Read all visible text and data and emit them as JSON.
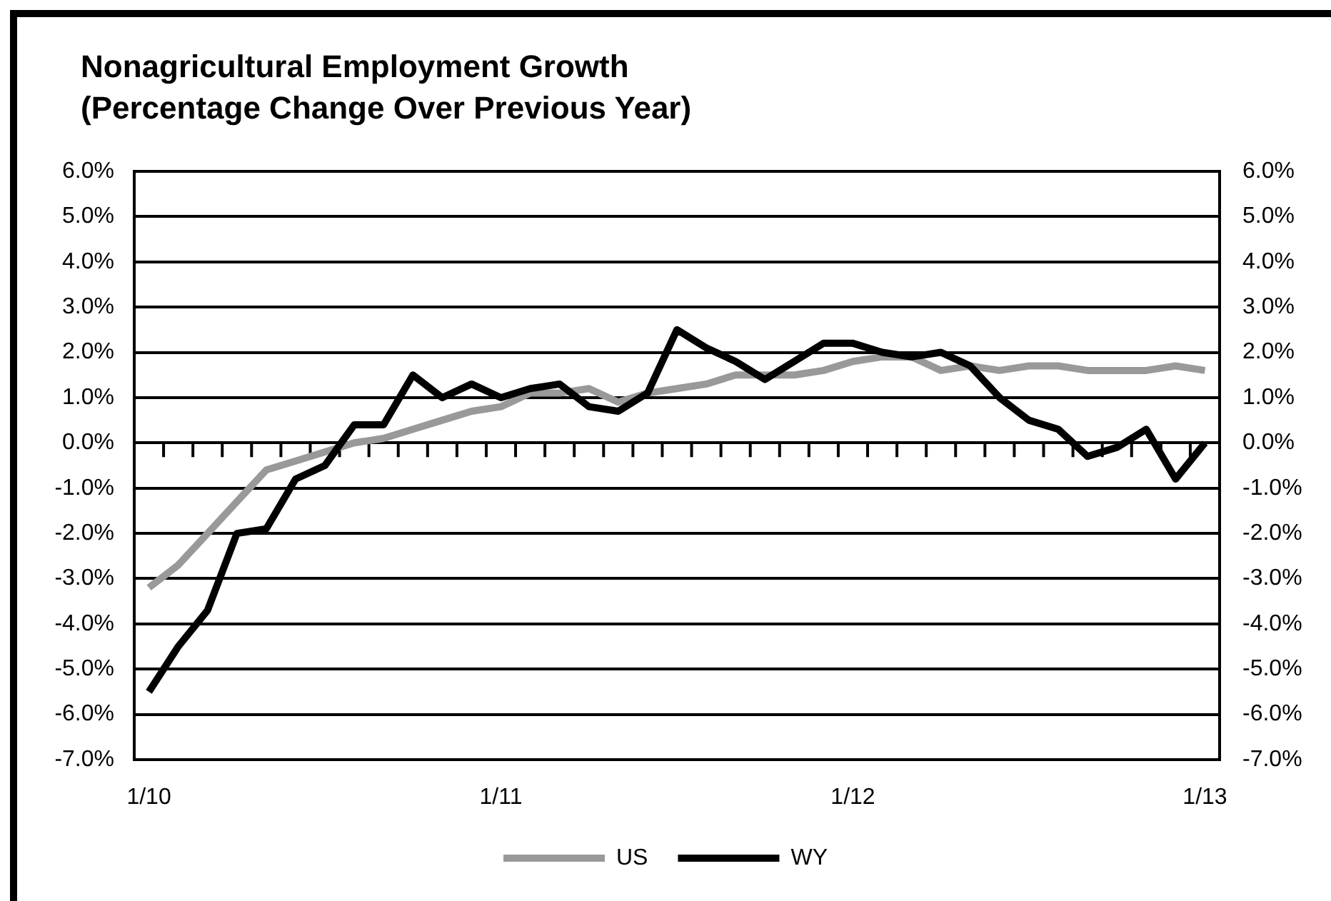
{
  "chart_data": {
    "type": "line",
    "title": "Nonagricultural Employment Growth",
    "subtitle": "(Percentage Change Over Previous Year)",
    "categories": [
      "1/10",
      null,
      null,
      null,
      null,
      null,
      null,
      null,
      null,
      null,
      null,
      null,
      "1/11",
      null,
      null,
      null,
      null,
      null,
      null,
      null,
      null,
      null,
      null,
      null,
      "1/12",
      null,
      null,
      null,
      null,
      null,
      null,
      null,
      null,
      null,
      null,
      null,
      "1/13"
    ],
    "series": [
      {
        "name": "US",
        "color": "#999999",
        "values": [
          -3.2,
          -2.7,
          -2.0,
          -1.3,
          -0.6,
          -0.4,
          -0.2,
          0.0,
          0.1,
          0.3,
          0.5,
          0.7,
          0.8,
          1.1,
          1.1,
          1.2,
          0.9,
          1.1,
          1.2,
          1.3,
          1.5,
          1.5,
          1.5,
          1.6,
          1.8,
          1.9,
          1.9,
          1.6,
          1.7,
          1.6,
          1.7,
          1.7,
          1.6,
          1.6,
          1.6,
          1.7,
          1.6
        ]
      },
      {
        "name": "WY",
        "color": "#000000",
        "values": [
          -5.5,
          -4.5,
          -3.7,
          -2.0,
          -1.9,
          -0.8,
          -0.5,
          0.4,
          0.4,
          1.5,
          1.0,
          1.3,
          1.0,
          1.2,
          1.3,
          0.8,
          0.7,
          1.1,
          2.5,
          2.1,
          1.8,
          1.4,
          1.8,
          2.2,
          2.2,
          2.0,
          1.9,
          2.0,
          1.7,
          1.0,
          0.5,
          0.3,
          -0.3,
          -0.1,
          0.3,
          -0.8,
          0.0
        ]
      }
    ],
    "ylim": [
      -7,
      6
    ],
    "yticks": [
      {
        "value": -7,
        "label": "-7.0%"
      },
      {
        "value": -6,
        "label": "-6.0%"
      },
      {
        "value": -5,
        "label": "-5.0%"
      },
      {
        "value": -4,
        "label": "-4.0%"
      },
      {
        "value": -3,
        "label": "-3.0%"
      },
      {
        "value": -2,
        "label": "-2.0%"
      },
      {
        "value": -1,
        "label": "-1.0%"
      },
      {
        "value": 0,
        "label": "0.0%"
      },
      {
        "value": 1,
        "label": "1.0%"
      },
      {
        "value": 2,
        "label": "2.0%"
      },
      {
        "value": 3,
        "label": "3.0%"
      },
      {
        "value": 4,
        "label": "4.0%"
      },
      {
        "value": 5,
        "label": "5.0%"
      },
      {
        "value": 6,
        "label": "6.0%"
      }
    ],
    "y2lim": [
      -7,
      6
    ],
    "y2ticks": [
      {
        "value": -7,
        "label": "-7.0%"
      },
      {
        "value": -6,
        "label": "-6.0%"
      },
      {
        "value": -5,
        "label": "-5.0%"
      },
      {
        "value": -4,
        "label": "-4.0%"
      },
      {
        "value": -3,
        "label": "-3.0%"
      },
      {
        "value": -2,
        "label": "-2.0%"
      },
      {
        "value": -1,
        "label": "-1.0%"
      },
      {
        "value": 0,
        "label": "0.0%"
      },
      {
        "value": 1,
        "label": "1.0%"
      },
      {
        "value": 2,
        "label": "2.0%"
      },
      {
        "value": 3,
        "label": "3.0%"
      },
      {
        "value": 4,
        "label": "4.0%"
      },
      {
        "value": 5,
        "label": "5.0%"
      },
      {
        "value": 6,
        "label": "6.0%"
      }
    ],
    "grid": "y",
    "legend": "bottom",
    "marker": "none",
    "line_style": "solid"
  }
}
